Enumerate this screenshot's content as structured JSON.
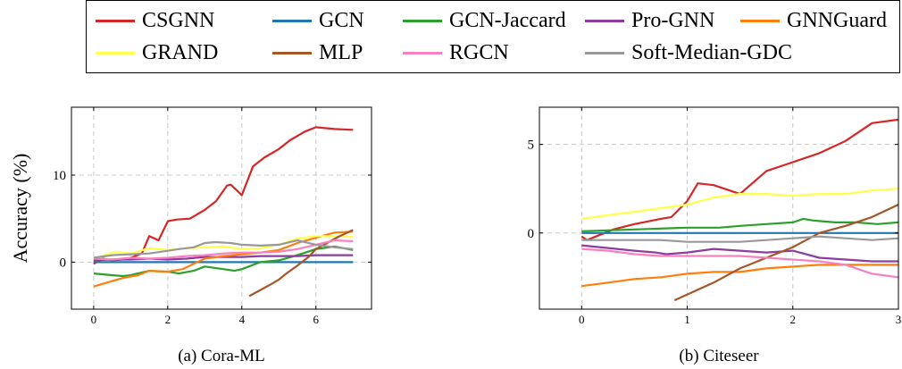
{
  "legend": {
    "entries": [
      {
        "name": "CSGNN",
        "color": "#d62728"
      },
      {
        "name": "GCN",
        "color": "#1f77b4"
      },
      {
        "name": "GCN-Jaccard",
        "color": "#2ca02c"
      },
      {
        "name": "Pro-GNN",
        "color": "#8e3c9e"
      },
      {
        "name": "GNNGuard",
        "color": "#ff7f0e"
      },
      {
        "name": "GRAND",
        "color": "#ffff4d"
      },
      {
        "name": "MLP",
        "color": "#a65628"
      },
      {
        "name": "RGCN",
        "color": "#f781bf"
      },
      {
        "name": "Soft-Median-GDC",
        "color": "#999999"
      }
    ]
  },
  "chart_data": [
    {
      "type": "line",
      "caption": "(a) Cora-ML",
      "ylabel": "Accuracy (%)",
      "xlim": [
        -0.6,
        7.5
      ],
      "ylim": [
        -5.4,
        17.8
      ],
      "xticks": [
        0,
        2,
        4,
        6
      ],
      "yticks": [
        0,
        10
      ],
      "grid": true,
      "series": [
        {
          "name": "CSGNN",
          "x": [
            0,
            0.25,
            0.5,
            0.75,
            1,
            1.3,
            1.5,
            1.75,
            2,
            2.25,
            2.6,
            3,
            3.3,
            3.6,
            3.7,
            4,
            4.3,
            4.6,
            5,
            5.3,
            5.7,
            6,
            6.5,
            7
          ],
          "y": [
            -0.2,
            0.4,
            0.2,
            0.3,
            0.5,
            1.0,
            3.0,
            2.5,
            4.7,
            4.9,
            5.0,
            6.0,
            7.0,
            8.8,
            8.9,
            7.7,
            11.0,
            12.0,
            13.0,
            14.0,
            15.0,
            15.5,
            15.3,
            15.2
          ]
        },
        {
          "name": "GCN",
          "x": [
            0,
            7
          ],
          "y": [
            0,
            0
          ]
        },
        {
          "name": "GCN-Jaccard",
          "x": [
            0,
            0.5,
            0.8,
            1,
            1.5,
            2,
            2.3,
            2.7,
            3.0,
            3.5,
            3.8,
            4.0,
            4.5,
            5.0,
            5.5,
            6.0,
            6.5,
            7.0
          ],
          "y": [
            -1.3,
            -1.5,
            -1.6,
            -1.5,
            -1.0,
            -1.1,
            -1.3,
            -1.0,
            -0.5,
            -0.8,
            -1.0,
            -0.8,
            0,
            0.2,
            0.8,
            1.5,
            1.8,
            1.4
          ]
        },
        {
          "name": "Pro-GNN",
          "x": [
            0,
            0.5,
            1,
            1.5,
            2,
            2.5,
            3,
            3.5,
            4,
            4.5,
            5,
            5.5,
            6,
            6.5,
            7
          ],
          "y": [
            0.2,
            0.3,
            0.3,
            0.4,
            0.3,
            0.4,
            0.6,
            0.6,
            0.6,
            0.7,
            0.7,
            0.7,
            0.8,
            0.8,
            0.8
          ]
        },
        {
          "name": "GNNGuard",
          "x": [
            0,
            0.4,
            0.8,
            1.2,
            1.5,
            2.0,
            2.4,
            2.7,
            3.0,
            3.5,
            4.0,
            4.5,
            5.0,
            5.5,
            6.0,
            6.5,
            7.0
          ],
          "y": [
            -2.8,
            -2.3,
            -1.8,
            -1.5,
            -1.0,
            -1.1,
            -0.8,
            -0.2,
            0.4,
            0.7,
            0.9,
            1.1,
            1.4,
            2.2,
            2.8,
            3.4,
            3.5
          ]
        },
        {
          "name": "GRAND",
          "x": [
            0,
            0.3,
            0.6,
            1,
            1.5,
            2,
            2.5,
            3,
            3.5,
            4,
            4.5,
            5,
            5.5,
            6,
            6.5,
            7
          ],
          "y": [
            0.4,
            0.8,
            1.2,
            1.0,
            1.6,
            1.4,
            1.6,
            1.7,
            1.8,
            1.5,
            1.6,
            2.0,
            2.7,
            3.0,
            3.0,
            2.9
          ]
        },
        {
          "name": "MLP",
          "x": [
            4.2,
            4.5,
            4.8,
            5.0,
            5.2,
            5.5,
            5.8,
            6.0,
            6.3,
            6.6,
            7.0
          ],
          "y": [
            -3.9,
            -3.2,
            -2.5,
            -2.0,
            -1.3,
            -0.4,
            0.6,
            1.5,
            2.2,
            2.9,
            3.7
          ]
        },
        {
          "name": "RGCN",
          "x": [
            0,
            0.5,
            1,
            1.5,
            2,
            2.5,
            3,
            3.5,
            4,
            4.5,
            5,
            5.5,
            6,
            6.5,
            7
          ],
          "y": [
            0.4,
            0.3,
            0.5,
            0.4,
            0.5,
            0.7,
            0.8,
            1.0,
            1.1,
            1.1,
            1.2,
            1.5,
            2.0,
            2.5,
            2.4
          ]
        },
        {
          "name": "Soft-Median-GDC",
          "x": [
            0,
            0.5,
            1,
            1.5,
            2,
            2.3,
            2.7,
            3,
            3.3,
            3.7,
            4,
            4.5,
            5,
            5.5,
            6,
            6.5,
            7
          ],
          "y": [
            0.5,
            0.8,
            0.9,
            1.0,
            1.3,
            1.5,
            1.7,
            2.2,
            2.3,
            2.2,
            2.0,
            1.9,
            2.0,
            2.5,
            2.0,
            1.7,
            1.5
          ]
        }
      ]
    },
    {
      "type": "line",
      "caption": "(b) Citeseer",
      "ylabel": "",
      "xlim": [
        -0.4,
        3.0
      ],
      "ylim": [
        -4.3,
        7.1
      ],
      "xticks": [
        0,
        1,
        2,
        3
      ],
      "yticks": [
        0,
        5
      ],
      "grid": true,
      "series": [
        {
          "name": "CSGNN",
          "x": [
            0,
            0.05,
            0.3,
            0.5,
            0.75,
            0.85,
            1.0,
            1.1,
            1.25,
            1.5,
            1.75,
            2.0,
            2.25,
            2.5,
            2.75,
            3.0
          ],
          "y": [
            -0.2,
            -0.4,
            0.2,
            0.5,
            0.8,
            0.9,
            1.8,
            2.8,
            2.7,
            2.2,
            3.5,
            4.0,
            4.5,
            5.2,
            6.2,
            6.4
          ]
        },
        {
          "name": "GCN",
          "x": [
            0,
            3
          ],
          "y": [
            0,
            0
          ]
        },
        {
          "name": "GCN-Jaccard",
          "x": [
            0,
            0.5,
            1.0,
            1.3,
            1.5,
            1.75,
            2.0,
            2.1,
            2.2,
            2.4,
            2.6,
            2.8,
            3.0
          ],
          "y": [
            0.1,
            0.2,
            0.3,
            0.3,
            0.4,
            0.5,
            0.6,
            0.8,
            0.7,
            0.6,
            0.6,
            0.5,
            0.6
          ]
        },
        {
          "name": "Pro-GNN",
          "x": [
            0,
            0.5,
            0.7,
            0.8,
            1.0,
            1.25,
            1.5,
            1.75,
            2.0,
            2.25,
            2.5,
            2.75,
            3.0
          ],
          "y": [
            -0.7,
            -1.0,
            -1.1,
            -1.2,
            -1.1,
            -0.9,
            -1.0,
            -1.1,
            -1.0,
            -1.4,
            -1.5,
            -1.6,
            -1.6
          ]
        },
        {
          "name": "GNNGuard",
          "x": [
            0,
            0.25,
            0.5,
            0.75,
            1.0,
            1.25,
            1.5,
            1.75,
            2.0,
            2.25,
            2.5,
            2.75,
            3.0
          ],
          "y": [
            -3.0,
            -2.8,
            -2.6,
            -2.5,
            -2.3,
            -2.2,
            -2.2,
            -2.0,
            -1.9,
            -1.8,
            -1.8,
            -1.8,
            -1.8
          ]
        },
        {
          "name": "GRAND",
          "x": [
            0,
            0.25,
            0.5,
            0.75,
            1.0,
            1.25,
            1.5,
            1.75,
            2.0,
            2.25,
            2.5,
            2.75,
            3.0
          ],
          "y": [
            0.8,
            1.0,
            1.2,
            1.4,
            1.6,
            2.0,
            2.2,
            2.2,
            2.1,
            2.2,
            2.2,
            2.4,
            2.5
          ]
        },
        {
          "name": "MLP",
          "x": [
            0.88,
            1.1,
            1.25,
            1.5,
            1.75,
            2.0,
            2.25,
            2.5,
            2.75,
            3.0
          ],
          "y": [
            -3.8,
            -3.2,
            -2.8,
            -2.0,
            -1.4,
            -0.8,
            0.0,
            0.4,
            0.9,
            1.6
          ]
        },
        {
          "name": "RGCN",
          "x": [
            0,
            0.25,
            0.5,
            0.75,
            1.0,
            1.25,
            1.5,
            1.75,
            2.0,
            2.25,
            2.5,
            2.75,
            3.0
          ],
          "y": [
            -0.9,
            -1.0,
            -1.2,
            -1.3,
            -1.3,
            -1.3,
            -1.3,
            -1.4,
            -1.5,
            -1.6,
            -1.8,
            -2.3,
            -2.5
          ]
        },
        {
          "name": "Soft-Median-GDC",
          "x": [
            0,
            0.25,
            0.5,
            0.75,
            1.0,
            1.25,
            1.5,
            1.75,
            2.0,
            2.25,
            2.5,
            2.75,
            3.0
          ],
          "y": [
            -0.4,
            -0.4,
            -0.4,
            -0.4,
            -0.5,
            -0.5,
            -0.5,
            -0.4,
            -0.3,
            -0.2,
            -0.3,
            -0.4,
            -0.3
          ]
        }
      ]
    }
  ]
}
